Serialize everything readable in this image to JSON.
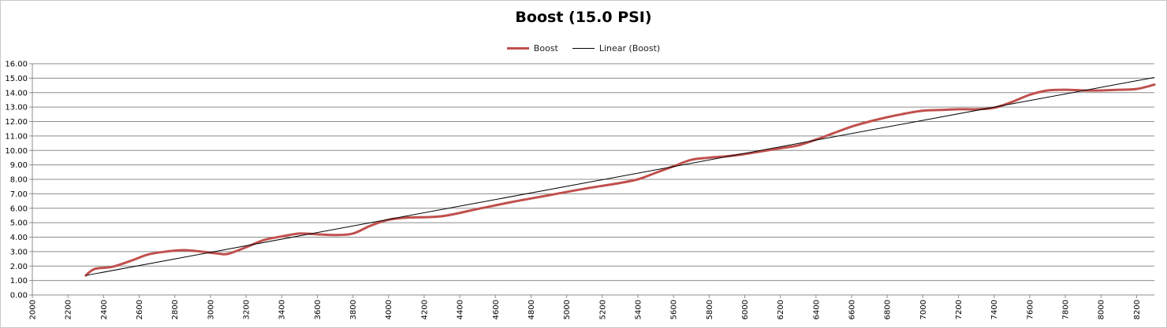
{
  "chart_data": {
    "type": "line",
    "title": "Boost (15.0 PSI)",
    "xlabel": "",
    "ylabel": "",
    "xlim": [
      2000,
      8300
    ],
    "ylim": [
      0,
      16
    ],
    "x_ticks": [
      2000,
      2200,
      2400,
      2600,
      2800,
      3000,
      3200,
      3400,
      3600,
      3800,
      4000,
      4200,
      4400,
      4600,
      4800,
      5000,
      5200,
      5400,
      5600,
      5800,
      6000,
      6200,
      6400,
      6600,
      6800,
      7000,
      7200,
      7400,
      7600,
      7800,
      8000,
      8200
    ],
    "x_tick_labels": [
      "2000",
      "2200",
      "2400",
      "2600",
      "2800",
      "3000",
      "3200",
      "3400",
      "3600",
      "3800",
      "4000",
      "4200",
      "4400",
      "4600",
      "4800",
      "5000",
      "5200",
      "5400",
      "5600",
      "5800",
      "6000",
      "6200",
      "6400",
      "6600",
      "6800",
      "7000",
      "7200",
      "7400",
      "7600",
      "7800",
      "8000",
      "8200"
    ],
    "y_ticks": [
      0,
      1,
      2,
      3,
      4,
      5,
      6,
      7,
      8,
      9,
      10,
      11,
      12,
      13,
      14,
      15,
      16
    ],
    "y_tick_labels": [
      "0.00",
      "1.00",
      "2.00",
      "3.00",
      "4.00",
      "5.00",
      "6.00",
      "7.00",
      "8.00",
      "9.00",
      "10.00",
      "11.00",
      "12.00",
      "13.00",
      "14.00",
      "15.00",
      "16.00"
    ],
    "grid": "horizontal",
    "legend_position": "top-center",
    "series": [
      {
        "name": "Boost",
        "color": "#c0504d",
        "x": [
          2300,
          2350,
          2450,
          2550,
          2650,
          2750,
          2850,
          2950,
          3050,
          3100,
          3200,
          3300,
          3400,
          3500,
          3600,
          3700,
          3800,
          3900,
          4000,
          4100,
          4300,
          4500,
          4700,
          4900,
          5100,
          5300,
          5400,
          5500,
          5600,
          5700,
          5800,
          5900,
          6000,
          6100,
          6200,
          6300,
          6400,
          6500,
          6600,
          6700,
          6800,
          6900,
          7000,
          7100,
          7200,
          7300,
          7400,
          7500,
          7600,
          7700,
          7800,
          7900,
          8000,
          8100,
          8200,
          8300
        ],
        "values": [
          1.35,
          1.8,
          1.95,
          2.35,
          2.8,
          3.0,
          3.1,
          3.0,
          2.85,
          2.85,
          3.3,
          3.8,
          4.05,
          4.25,
          4.2,
          4.15,
          4.25,
          4.8,
          5.2,
          5.35,
          5.45,
          5.95,
          6.45,
          6.9,
          7.35,
          7.75,
          8.0,
          8.45,
          8.9,
          9.35,
          9.5,
          9.6,
          9.75,
          9.95,
          10.15,
          10.35,
          10.75,
          11.2,
          11.65,
          12.0,
          12.3,
          12.55,
          12.75,
          12.8,
          12.85,
          12.85,
          12.95,
          13.35,
          13.85,
          14.15,
          14.2,
          14.15,
          14.15,
          14.2,
          14.25,
          14.55
        ]
      },
      {
        "name": "Linear (Boost)",
        "color": "#000000",
        "x": [
          2300,
          8300
        ],
        "values": [
          1.35,
          15.05
        ]
      }
    ]
  }
}
